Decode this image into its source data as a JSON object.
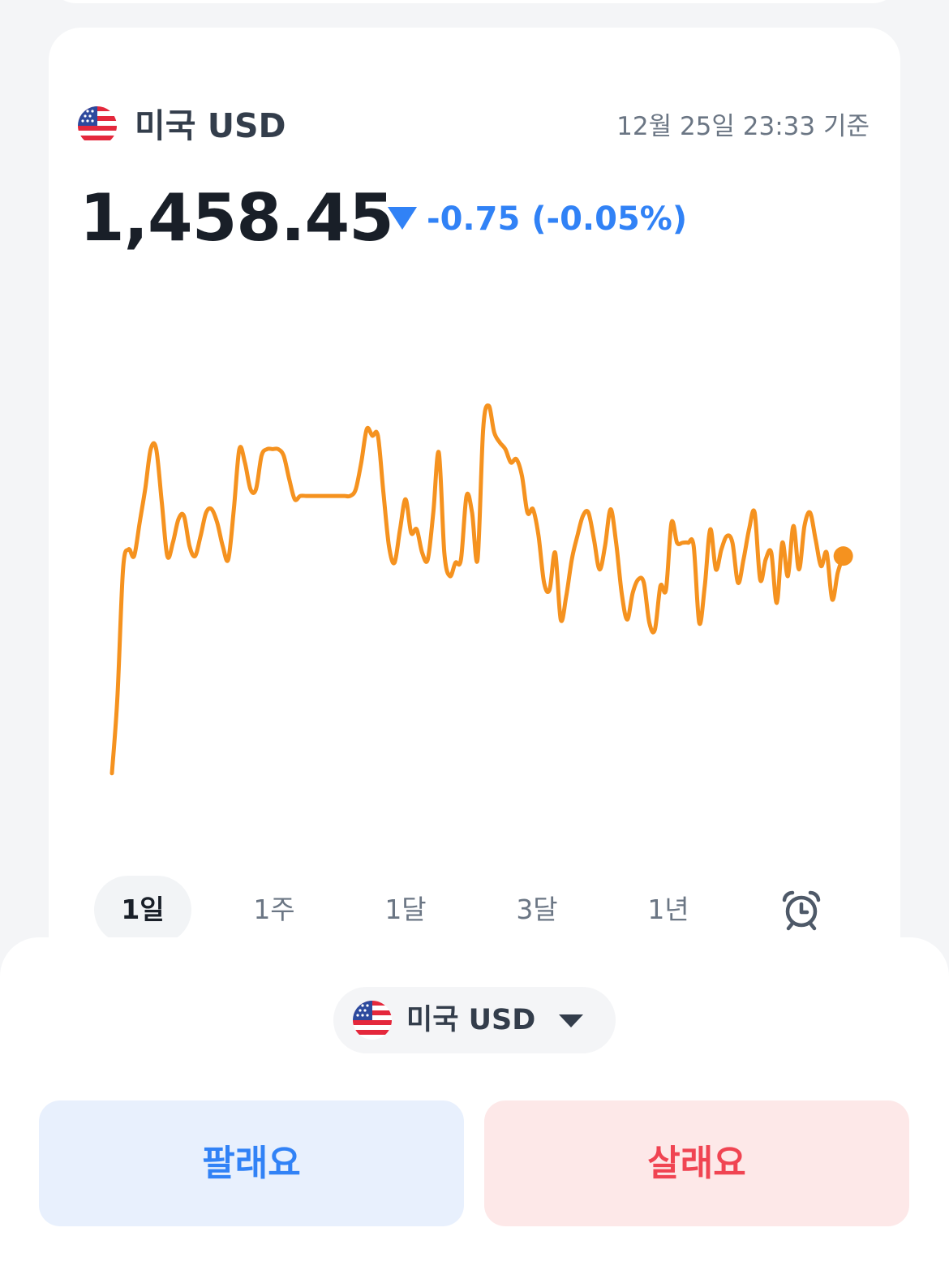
{
  "header": {
    "currency": "미국 USD",
    "timestamp": "12월 25일 23:33 기준",
    "flag_icon": "us-flag-icon"
  },
  "quote": {
    "price": "1,458.45",
    "change": "-0.75 (-0.05%)",
    "direction": "down",
    "down_color": "#3182f6"
  },
  "chart_data": {
    "type": "line",
    "series": [
      {
        "values": [
          1457.08,
          1458.0,
          1459.52,
          1459.76,
          1459.68,
          1460.08,
          1460.48,
          1460.96,
          1460.96,
          1460.32,
          1459.68,
          1459.84,
          1460.12,
          1460.16,
          1459.8,
          1459.68,
          1459.92,
          1460.2,
          1460.24,
          1460.08,
          1459.8,
          1459.64,
          1460.24,
          1460.96,
          1460.8,
          1460.48,
          1460.48,
          1460.88,
          1460.96,
          1460.96,
          1460.96,
          1460.88,
          1460.6,
          1460.36,
          1460.4,
          1460.4,
          1460.4,
          1460.4,
          1460.4,
          1460.4,
          1460.4,
          1460.4,
          1460.4,
          1460.4,
          1460.48,
          1460.8,
          1461.2,
          1461.12,
          1461.12,
          1460.44,
          1459.8,
          1459.6,
          1460.0,
          1460.36,
          1459.96,
          1460.0,
          1459.72,
          1459.64,
          1460.2,
          1460.92,
          1459.72,
          1459.44,
          1459.6,
          1459.64,
          1460.4,
          1460.2,
          1459.64,
          1461.2,
          1461.48,
          1461.16,
          1461.04,
          1460.96,
          1460.8,
          1460.84,
          1460.64,
          1460.2,
          1460.24,
          1459.92,
          1459.36,
          1459.28,
          1459.72,
          1458.92,
          1459.2,
          1459.64,
          1459.92,
          1460.16,
          1460.2,
          1459.88,
          1459.52,
          1459.8,
          1460.24,
          1459.84,
          1459.24,
          1458.92,
          1459.24,
          1459.4,
          1459.36,
          1458.88,
          1458.8,
          1459.32,
          1459.28,
          1460.08,
          1459.84,
          1459.84,
          1459.84,
          1459.8,
          1458.88,
          1459.32,
          1460.0,
          1459.52,
          1459.76,
          1459.92,
          1459.84,
          1459.36,
          1459.64,
          1460.0,
          1460.2,
          1459.4,
          1459.64,
          1459.72,
          1459.12,
          1459.84,
          1459.44,
          1460.04,
          1459.52,
          1460.04,
          1460.2,
          1459.88,
          1459.56,
          1459.72,
          1459.16,
          1459.48,
          1459.68
        ]
      }
    ],
    "line_color": "#f5921f",
    "marker_color": "#f5921f",
    "xlim": [
      0,
      130
    ],
    "ylim": [
      1456.0,
      1462.8
    ]
  },
  "range_tabs": [
    {
      "label": "1일",
      "active": true
    },
    {
      "label": "1주",
      "active": false
    },
    {
      "label": "1달",
      "active": false
    },
    {
      "label": "3달",
      "active": false
    },
    {
      "label": "1년",
      "active": false
    }
  ],
  "alarm_icon": "alarm-clock-icon",
  "selector": {
    "label": "미국 USD",
    "flag_icon": "us-flag-icon",
    "caret_icon": "caret-down-icon"
  },
  "actions": {
    "sell_label": "팔래요",
    "buy_label": "살래요",
    "sell_color": "#3182f6",
    "buy_color": "#f04452"
  }
}
